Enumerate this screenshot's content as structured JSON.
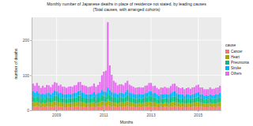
{
  "chart_data": {
    "type": "bar",
    "stacked": true,
    "grid": true,
    "legend": "right",
    "title": "Monthly number of Japanese deaths in place of residence not stated, by leading causes",
    "subtitle": "(Total causes, with arranged cohorts)",
    "x_label": "Months",
    "y_label": "number of deaths",
    "legend_title": "cause",
    "ylim": [
      0,
      265
    ],
    "yticks": [
      0,
      100,
      200
    ],
    "categories": [
      null,
      null,
      null,
      null,
      null,
      null,
      null,
      null,
      null,
      null,
      null,
      null,
      "2009",
      null,
      null,
      null,
      null,
      null,
      null,
      null,
      null,
      null,
      null,
      null,
      null,
      null,
      null,
      null,
      null,
      null,
      null,
      null,
      null,
      null,
      null,
      null,
      "2011",
      null,
      null,
      null,
      null,
      null,
      null,
      null,
      null,
      null,
      null,
      null,
      null,
      null,
      null,
      null,
      null,
      null,
      null,
      null,
      null,
      null,
      null,
      null,
      "2013",
      null,
      null,
      null,
      null,
      null,
      null,
      null,
      null,
      null,
      null,
      null,
      null,
      null,
      null,
      null,
      null,
      null,
      null,
      null,
      null,
      null,
      null,
      null,
      "2015",
      null,
      null,
      null,
      null,
      null,
      null,
      null,
      null,
      null,
      null,
      null
    ],
    "series": [
      {
        "name": "Cancer",
        "color": "#F8766D",
        "values": [
          11,
          10,
          12,
          10,
          9,
          10,
          9,
          10,
          11,
          10,
          11,
          12,
          12,
          10,
          11,
          10,
          9,
          9,
          10,
          9,
          10,
          11,
          10,
          12,
          11,
          11,
          10,
          9,
          10,
          9,
          10,
          11,
          9,
          10,
          11,
          12,
          12,
          11,
          14,
          12,
          11,
          10,
          10,
          9,
          10,
          11,
          10,
          11,
          12,
          11,
          10,
          10,
          9,
          9,
          10,
          9,
          10,
          10,
          11,
          12,
          11,
          10,
          11,
          9,
          9,
          10,
          9,
          10,
          10,
          9,
          10,
          11,
          12,
          10,
          10,
          9,
          10,
          9,
          9,
          10,
          9,
          10,
          10,
          11,
          11,
          10,
          10,
          9,
          9,
          9,
          10,
          9,
          10,
          9,
          10,
          11
        ]
      },
      {
        "name": "Heart",
        "color": "#A3A500",
        "values": [
          13,
          12,
          13,
          12,
          11,
          12,
          11,
          12,
          12,
          11,
          12,
          14,
          13,
          12,
          12,
          11,
          12,
          11,
          11,
          12,
          11,
          12,
          12,
          13,
          14,
          12,
          12,
          11,
          11,
          12,
          11,
          13,
          11,
          12,
          12,
          14,
          13,
          13,
          16,
          14,
          13,
          12,
          12,
          11,
          12,
          12,
          11,
          13,
          14,
          12,
          12,
          11,
          11,
          11,
          12,
          11,
          11,
          12,
          12,
          13,
          13,
          12,
          12,
          11,
          10,
          11,
          11,
          12,
          11,
          11,
          12,
          13,
          13,
          12,
          11,
          11,
          11,
          10,
          11,
          11,
          11,
          11,
          12,
          12,
          13,
          11,
          11,
          10,
          11,
          10,
          11,
          11,
          10,
          11,
          11,
          12
        ]
      },
      {
        "name": "Pneumonia",
        "color": "#00BF7D",
        "values": [
          16,
          15,
          15,
          14,
          13,
          14,
          13,
          14,
          14,
          13,
          15,
          16,
          16,
          14,
          15,
          14,
          13,
          13,
          14,
          13,
          14,
          14,
          15,
          16,
          17,
          15,
          14,
          14,
          13,
          13,
          14,
          15,
          13,
          14,
          15,
          17,
          16,
          15,
          19,
          17,
          15,
          14,
          14,
          13,
          14,
          14,
          14,
          15,
          17,
          15,
          14,
          14,
          13,
          13,
          13,
          13,
          13,
          14,
          14,
          16,
          16,
          14,
          14,
          13,
          12,
          13,
          13,
          13,
          13,
          13,
          14,
          15,
          15,
          14,
          13,
          13,
          13,
          12,
          13,
          13,
          12,
          13,
          13,
          14,
          15,
          13,
          13,
          12,
          12,
          12,
          13,
          12,
          12,
          13,
          13,
          14
        ]
      },
      {
        "name": "Stroke",
        "color": "#00B0F6",
        "values": [
          14,
          13,
          14,
          13,
          12,
          12,
          12,
          13,
          13,
          12,
          13,
          14,
          14,
          13,
          13,
          12,
          12,
          12,
          12,
          12,
          12,
          13,
          13,
          14,
          15,
          13,
          13,
          12,
          12,
          12,
          12,
          13,
          12,
          13,
          13,
          15,
          14,
          14,
          17,
          15,
          14,
          13,
          13,
          12,
          13,
          13,
          13,
          14,
          15,
          13,
          13,
          12,
          12,
          12,
          12,
          12,
          12,
          13,
          13,
          14,
          14,
          13,
          13,
          12,
          11,
          12,
          12,
          12,
          12,
          12,
          13,
          14,
          14,
          13,
          12,
          12,
          12,
          11,
          12,
          12,
          11,
          12,
          12,
          13,
          13,
          12,
          12,
          11,
          11,
          11,
          12,
          11,
          11,
          12,
          12,
          13
        ]
      },
      {
        "name": "Others",
        "color": "#E76BF3",
        "values": [
          22,
          20,
          24,
          21,
          19,
          22,
          20,
          23,
          21,
          20,
          22,
          24,
          23,
          21,
          22,
          20,
          21,
          19,
          20,
          22,
          20,
          21,
          22,
          25,
          24,
          21,
          22,
          23,
          20,
          21,
          22,
          24,
          22,
          23,
          30,
          42,
          55,
          60,
          185,
          70,
          48,
          35,
          30,
          26,
          25,
          24,
          23,
          25,
          26,
          22,
          21,
          20,
          19,
          20,
          19,
          20,
          19,
          21,
          21,
          23,
          24,
          20,
          20,
          19,
          18,
          19,
          19,
          20,
          18,
          19,
          20,
          22,
          22,
          20,
          19,
          18,
          19,
          18,
          18,
          19,
          18,
          19,
          19,
          21,
          21,
          19,
          19,
          18,
          17,
          18,
          19,
          18,
          18,
          19,
          19,
          20
        ]
      }
    ]
  }
}
